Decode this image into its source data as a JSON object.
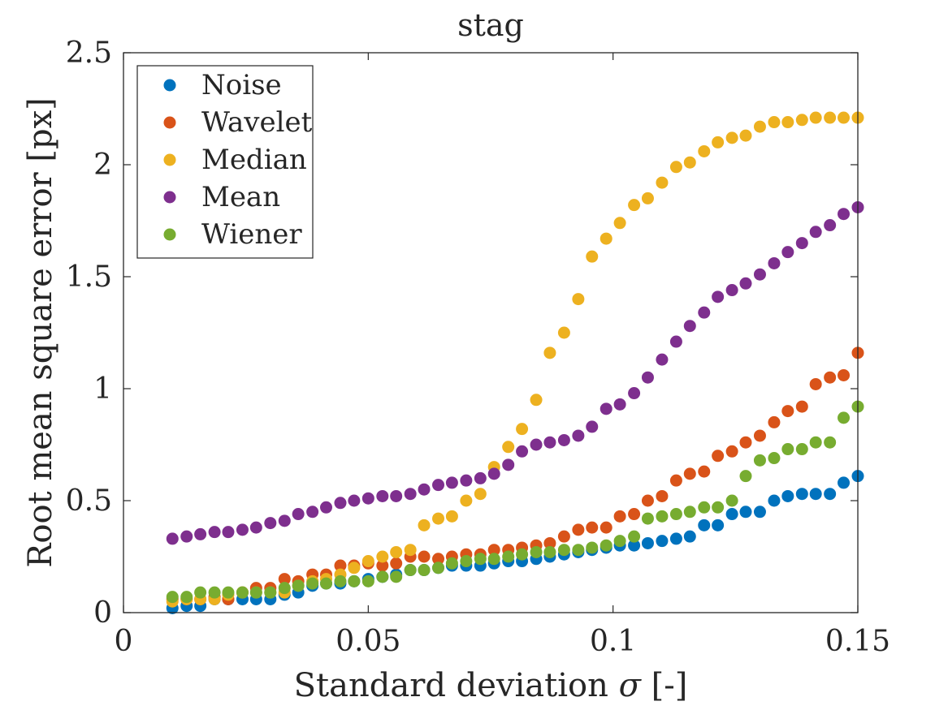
{
  "chart_data": {
    "type": "scatter",
    "title": "stag",
    "xlabel_prefix": "Standard deviation ",
    "xlabel_symbol": "σ",
    "xlabel_suffix": " [-]",
    "ylabel": "Root mean square error [px]",
    "xlim": [
      0,
      0.15
    ],
    "ylim": [
      0,
      2.5
    ],
    "x_tick_labels": [
      "0",
      "0.05",
      "0.1",
      "0.15"
    ],
    "y_tick_labels": [
      "0",
      "0.5",
      "1",
      "1.5",
      "2",
      "2.5"
    ],
    "legend_position": "top-left",
    "grid": false,
    "x": [
      0.01,
      0.0129,
      0.0157,
      0.0186,
      0.0214,
      0.0243,
      0.0271,
      0.03,
      0.0329,
      0.0357,
      0.0386,
      0.0414,
      0.0443,
      0.0471,
      0.05,
      0.0529,
      0.0557,
      0.0586,
      0.0614,
      0.0643,
      0.0671,
      0.07,
      0.0729,
      0.0757,
      0.0786,
      0.0814,
      0.0843,
      0.0871,
      0.09,
      0.0929,
      0.0957,
      0.0986,
      0.1014,
      0.1043,
      0.1071,
      0.11,
      0.1129,
      0.1157,
      0.1186,
      0.1214,
      0.1243,
      0.1271,
      0.13,
      0.1329,
      0.1357,
      0.1386,
      0.1414,
      0.1443,
      0.1471,
      0.15
    ],
    "series": [
      {
        "name": "Noise",
        "color": "#0072BD",
        "values": [
          0.02,
          0.03,
          0.03,
          0.06,
          0.06,
          0.06,
          0.06,
          0.06,
          0.08,
          0.09,
          0.12,
          0.13,
          0.13,
          0.14,
          0.15,
          0.16,
          0.17,
          0.19,
          0.19,
          0.2,
          0.21,
          0.21,
          0.21,
          0.22,
          0.23,
          0.23,
          0.24,
          0.25,
          0.26,
          0.27,
          0.28,
          0.29,
          0.3,
          0.3,
          0.31,
          0.32,
          0.33,
          0.34,
          0.39,
          0.39,
          0.44,
          0.45,
          0.45,
          0.5,
          0.52,
          0.53,
          0.53,
          0.53,
          0.58,
          0.61
        ]
      },
      {
        "name": "Wavelet",
        "color": "#D95319",
        "values": [
          0.06,
          0.06,
          0.06,
          0.07,
          0.06,
          0.09,
          0.11,
          0.11,
          0.15,
          0.14,
          0.17,
          0.17,
          0.21,
          0.21,
          0.22,
          0.21,
          0.22,
          0.25,
          0.25,
          0.24,
          0.25,
          0.26,
          0.26,
          0.28,
          0.28,
          0.29,
          0.3,
          0.31,
          0.34,
          0.37,
          0.38,
          0.38,
          0.43,
          0.44,
          0.5,
          0.52,
          0.59,
          0.62,
          0.63,
          0.7,
          0.72,
          0.76,
          0.79,
          0.85,
          0.9,
          0.92,
          1.02,
          1.05,
          1.06,
          1.16
        ]
      },
      {
        "name": "Median",
        "color": "#EDB120",
        "values": [
          0.05,
          0.06,
          0.06,
          0.06,
          0.08,
          0.09,
          0.09,
          0.09,
          0.09,
          0.12,
          0.14,
          0.15,
          0.17,
          0.2,
          0.23,
          0.25,
          0.27,
          0.28,
          0.39,
          0.42,
          0.43,
          0.5,
          0.53,
          0.65,
          0.74,
          0.82,
          0.95,
          1.16,
          1.25,
          1.4,
          1.59,
          1.67,
          1.74,
          1.82,
          1.85,
          1.92,
          1.99,
          2.01,
          2.06,
          2.1,
          2.12,
          2.13,
          2.17,
          2.19,
          2.19,
          2.2,
          2.21,
          2.21,
          2.21,
          2.21
        ]
      },
      {
        "name": "Mean",
        "color": "#7E2F8E",
        "values": [
          0.33,
          0.34,
          0.35,
          0.36,
          0.36,
          0.37,
          0.38,
          0.4,
          0.41,
          0.44,
          0.45,
          0.47,
          0.49,
          0.5,
          0.51,
          0.52,
          0.52,
          0.53,
          0.55,
          0.57,
          0.58,
          0.59,
          0.6,
          0.62,
          0.66,
          0.72,
          0.75,
          0.76,
          0.77,
          0.79,
          0.83,
          0.91,
          0.93,
          0.98,
          1.05,
          1.13,
          1.21,
          1.28,
          1.34,
          1.41,
          1.44,
          1.47,
          1.51,
          1.56,
          1.61,
          1.65,
          1.7,
          1.73,
          1.78,
          1.81
        ]
      },
      {
        "name": "Wiener",
        "color": "#77AC30",
        "values": [
          0.07,
          0.07,
          0.09,
          0.09,
          0.09,
          0.09,
          0.09,
          0.09,
          0.11,
          0.12,
          0.13,
          0.13,
          0.14,
          0.14,
          0.14,
          0.16,
          0.16,
          0.19,
          0.19,
          0.2,
          0.22,
          0.23,
          0.24,
          0.24,
          0.25,
          0.26,
          0.27,
          0.27,
          0.28,
          0.28,
          0.29,
          0.3,
          0.32,
          0.34,
          0.42,
          0.43,
          0.44,
          0.45,
          0.47,
          0.47,
          0.5,
          0.61,
          0.68,
          0.69,
          0.73,
          0.73,
          0.76,
          0.76,
          0.87,
          0.92
        ]
      }
    ]
  }
}
